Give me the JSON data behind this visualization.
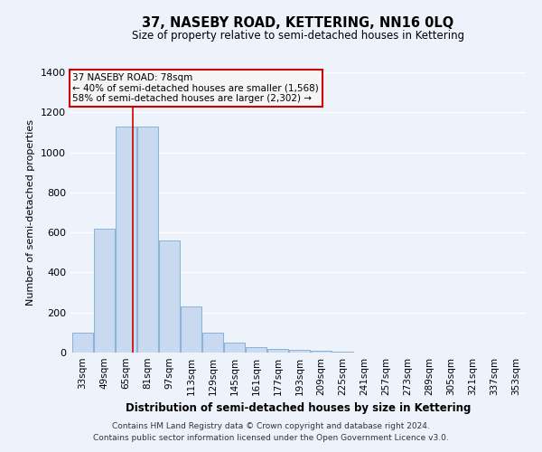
{
  "title": "37, NASEBY ROAD, KETTERING, NN16 0LQ",
  "subtitle": "Size of property relative to semi-detached houses in Kettering",
  "xlabel": "Distribution of semi-detached houses by size in Kettering",
  "ylabel": "Number of semi-detached properties",
  "bin_labels": [
    "33sqm",
    "49sqm",
    "65sqm",
    "81sqm",
    "97sqm",
    "113sqm",
    "129sqm",
    "145sqm",
    "161sqm",
    "177sqm",
    "193sqm",
    "209sqm",
    "225sqm",
    "241sqm",
    "257sqm",
    "273sqm",
    "289sqm",
    "305sqm",
    "321sqm",
    "337sqm",
    "353sqm"
  ],
  "bin_edges": [
    33,
    49,
    65,
    81,
    97,
    113,
    129,
    145,
    161,
    177,
    193,
    209,
    225,
    241,
    257,
    273,
    289,
    305,
    321,
    337,
    353,
    369
  ],
  "bar_heights": [
    100,
    620,
    1130,
    1130,
    560,
    230,
    100,
    50,
    25,
    20,
    15,
    10,
    5,
    0,
    0,
    0,
    0,
    0,
    0,
    0,
    0
  ],
  "bar_color": "#c9d9f0",
  "bar_edgecolor": "#7aaad4",
  "property_line_x": 78,
  "ylim": [
    0,
    1400
  ],
  "yticks": [
    0,
    200,
    400,
    600,
    800,
    1000,
    1200,
    1400
  ],
  "annotation_title": "37 NASEBY ROAD: 78sqm",
  "annotation_line1": "← 40% of semi-detached houses are smaller (1,568)",
  "annotation_line2": "58% of semi-detached houses are larger (2,302) →",
  "footer_line1": "Contains HM Land Registry data © Crown copyright and database right 2024.",
  "footer_line2": "Contains public sector information licensed under the Open Government Licence v3.0.",
  "background_color": "#eef2fb",
  "grid_color": "#ffffff",
  "annotation_box_facecolor": "#f5f5f5",
  "annotation_box_edgecolor": "#cc0000",
  "property_line_color": "#cc0000",
  "title_fontsize": 10.5,
  "subtitle_fontsize": 8.5,
  "xlabel_fontsize": 8.5,
  "ylabel_fontsize": 8,
  "tick_fontsize": 7.5,
  "ytick_fontsize": 8,
  "footer_fontsize": 6.5,
  "annotation_fontsize": 7.5
}
